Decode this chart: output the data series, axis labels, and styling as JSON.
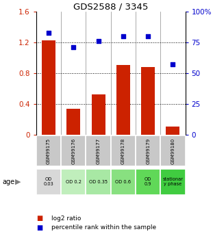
{
  "title": "GDS2588 / 3345",
  "categories": [
    "GSM99175",
    "GSM99176",
    "GSM99177",
    "GSM99178",
    "GSM99179",
    "GSM99180"
  ],
  "log2_ratio": [
    1.23,
    0.34,
    0.52,
    0.91,
    0.88,
    0.1
  ],
  "percentile_rank": [
    83,
    71,
    76,
    80,
    80,
    57
  ],
  "bar_color": "#cc2200",
  "dot_color": "#0000cc",
  "ylim_left": [
    0,
    1.6
  ],
  "ylim_right": [
    0,
    100
  ],
  "yticks_left": [
    0,
    0.4,
    0.8,
    1.2,
    1.6
  ],
  "ytick_labels_left": [
    "0",
    "0.4",
    "0.8",
    "1.2",
    "1.6"
  ],
  "yticks_right": [
    0,
    25,
    50,
    75,
    100
  ],
  "ytick_labels_right": [
    "0",
    "25",
    "50",
    "75",
    "100%"
  ],
  "hlines": [
    0.4,
    0.8,
    1.2
  ],
  "age_labels": [
    "OD\n0.03",
    "OD 0.2",
    "OD 0.35",
    "OD 0.6",
    "OD\n0.9",
    "stationar\ny phase"
  ],
  "age_bg_colors": [
    "#d8d8d8",
    "#c0eebc",
    "#a8e8a4",
    "#88e080",
    "#60d858",
    "#40cc40"
  ],
  "gsm_bg_color": "#c8c8c8",
  "legend_ratio_label": "log2 ratio",
  "legend_pct_label": "percentile rank within the sample",
  "xlabel_age": "age"
}
